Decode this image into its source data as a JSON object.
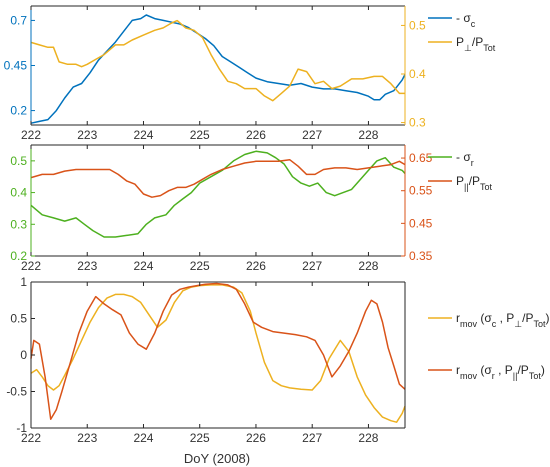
{
  "figure": {
    "xlabel": "DoY (2008)",
    "xticks": [
      "222",
      "223",
      "224",
      "225",
      "226",
      "227",
      "228"
    ]
  },
  "chart_data": [
    {
      "type": "line",
      "xlim": [
        222,
        228.65
      ],
      "grid": false,
      "legend_position": "outside-right",
      "left_axis": {
        "ylim": [
          0.12,
          0.78
        ],
        "ticks": [
          "0.2",
          "0.45",
          "0.7"
        ],
        "color": "#0072bd"
      },
      "right_axis": {
        "ylim": [
          0.295,
          0.54
        ],
        "ticks": [
          "0.3",
          "0.4",
          "0.5"
        ],
        "color": "#edb120"
      },
      "series": [
        {
          "name": "- σ_c",
          "legend_main": "- σ",
          "legend_sub": "c",
          "axis": "left",
          "color": "#0072bd",
          "x": [
            222.0,
            222.15,
            222.3,
            222.45,
            222.6,
            222.75,
            222.9,
            223.05,
            223.2,
            223.35,
            223.5,
            223.65,
            223.8,
            223.95,
            224.05,
            224.2,
            224.35,
            224.5,
            224.65,
            224.8,
            224.95,
            225.1,
            225.25,
            225.4,
            225.55,
            225.7,
            225.85,
            226.0,
            226.2,
            226.4,
            226.6,
            226.8,
            227.0,
            227.2,
            227.4,
            227.6,
            227.8,
            228.0,
            228.1,
            228.2,
            228.3,
            228.45,
            228.6,
            228.65
          ],
          "y": [
            0.13,
            0.14,
            0.15,
            0.2,
            0.27,
            0.33,
            0.35,
            0.41,
            0.48,
            0.53,
            0.58,
            0.64,
            0.7,
            0.71,
            0.73,
            0.71,
            0.7,
            0.69,
            0.68,
            0.66,
            0.63,
            0.6,
            0.56,
            0.5,
            0.47,
            0.44,
            0.41,
            0.38,
            0.36,
            0.35,
            0.34,
            0.35,
            0.33,
            0.32,
            0.32,
            0.31,
            0.3,
            0.28,
            0.26,
            0.26,
            0.29,
            0.31,
            0.37,
            0.4
          ]
        },
        {
          "name": "P⊥/P_Tot",
          "legend_main": "P",
          "legend_sub": "⊥",
          "legend_tail": "/P",
          "legend_tail_sub": "Tot",
          "axis": "right",
          "color": "#edb120",
          "x": [
            222.0,
            222.15,
            222.3,
            222.4,
            222.5,
            222.65,
            222.8,
            222.9,
            223.0,
            223.15,
            223.3,
            223.5,
            223.65,
            223.8,
            224.0,
            224.2,
            224.35,
            224.5,
            224.6,
            224.75,
            224.9,
            225.05,
            225.2,
            225.35,
            225.5,
            225.65,
            225.8,
            226.0,
            226.15,
            226.3,
            226.45,
            226.6,
            226.75,
            226.9,
            227.05,
            227.2,
            227.35,
            227.5,
            227.7,
            227.9,
            228.1,
            228.25,
            228.4,
            228.55,
            228.65
          ],
          "y": [
            0.465,
            0.46,
            0.455,
            0.455,
            0.425,
            0.42,
            0.42,
            0.415,
            0.42,
            0.43,
            0.44,
            0.46,
            0.46,
            0.47,
            0.48,
            0.49,
            0.495,
            0.505,
            0.51,
            0.495,
            0.49,
            0.475,
            0.44,
            0.41,
            0.385,
            0.38,
            0.37,
            0.37,
            0.355,
            0.345,
            0.36,
            0.375,
            0.41,
            0.405,
            0.38,
            0.385,
            0.37,
            0.375,
            0.39,
            0.39,
            0.395,
            0.395,
            0.38,
            0.36,
            0.36
          ]
        }
      ]
    },
    {
      "type": "line",
      "xlim": [
        222,
        228.65
      ],
      "grid": false,
      "legend_position": "outside-right",
      "left_axis": {
        "ylim": [
          0.2,
          0.55
        ],
        "ticks": [
          "0.2",
          "0.3",
          "0.4",
          "0.5"
        ],
        "color": "#4db01f"
      },
      "right_axis": {
        "ylim": [
          0.35,
          0.69
        ],
        "ticks": [
          "0.35",
          "0.45",
          "0.55",
          "0.65"
        ],
        "color": "#d95319"
      },
      "series": [
        {
          "name": "- σ_r",
          "legend_main": "- σ",
          "legend_sub": "r",
          "axis": "left",
          "color": "#4db01f",
          "x": [
            222.0,
            222.2,
            222.4,
            222.6,
            222.8,
            222.95,
            223.1,
            223.3,
            223.5,
            223.7,
            223.9,
            224.05,
            224.2,
            224.4,
            224.55,
            224.7,
            224.85,
            225.0,
            225.2,
            225.4,
            225.6,
            225.8,
            226.0,
            226.2,
            226.35,
            226.5,
            226.65,
            226.8,
            226.95,
            227.1,
            227.25,
            227.4,
            227.55,
            227.7,
            227.85,
            228.0,
            228.15,
            228.3,
            228.45,
            228.6,
            228.65
          ],
          "y": [
            0.36,
            0.33,
            0.32,
            0.31,
            0.32,
            0.3,
            0.28,
            0.26,
            0.26,
            0.265,
            0.27,
            0.3,
            0.32,
            0.33,
            0.36,
            0.38,
            0.4,
            0.43,
            0.45,
            0.47,
            0.5,
            0.52,
            0.53,
            0.525,
            0.51,
            0.49,
            0.45,
            0.43,
            0.42,
            0.43,
            0.4,
            0.39,
            0.4,
            0.41,
            0.44,
            0.47,
            0.5,
            0.51,
            0.48,
            0.47,
            0.46
          ]
        },
        {
          "name": "P||/P_Tot",
          "legend_main": "P",
          "legend_sub": "||",
          "legend_tail": "/P",
          "legend_tail_sub": "Tot",
          "axis": "right",
          "color": "#d95319",
          "x": [
            222.0,
            222.2,
            222.4,
            222.6,
            222.8,
            223.0,
            223.2,
            223.4,
            223.55,
            223.7,
            223.85,
            224.0,
            224.15,
            224.3,
            224.45,
            224.6,
            224.75,
            224.9,
            225.05,
            225.2,
            225.4,
            225.6,
            225.8,
            226.0,
            226.2,
            226.4,
            226.6,
            226.75,
            226.9,
            227.05,
            227.2,
            227.4,
            227.6,
            227.8,
            228.0,
            228.2,
            228.4,
            228.55,
            228.65
          ],
          "y": [
            0.59,
            0.6,
            0.6,
            0.61,
            0.615,
            0.615,
            0.615,
            0.615,
            0.6,
            0.58,
            0.57,
            0.54,
            0.53,
            0.535,
            0.55,
            0.56,
            0.56,
            0.57,
            0.585,
            0.6,
            0.615,
            0.625,
            0.635,
            0.64,
            0.64,
            0.64,
            0.645,
            0.625,
            0.6,
            0.6,
            0.615,
            0.62,
            0.62,
            0.615,
            0.62,
            0.625,
            0.63,
            0.64,
            0.63
          ]
        }
      ]
    },
    {
      "type": "line",
      "xlim": [
        222,
        228.65
      ],
      "ylim": [
        -1,
        1
      ],
      "yticks": [
        "-1",
        "-0.5",
        "0",
        "0.5",
        "1"
      ],
      "grid": false,
      "legend_position": "outside-right",
      "series": [
        {
          "name": "r_mov (σ_c , P⊥/P_Tot)",
          "legend_main": "r",
          "legend_sub": "mov",
          "legend_rest": " (σ",
          "legend_rest_sub": "c",
          "legend_rest2": " , P",
          "legend_rest2_sub": "⊥",
          "legend_tail": "/P",
          "legend_tail_sub": "Tot",
          "legend_end": ")",
          "color": "#edb120",
          "x": [
            222.0,
            222.1,
            222.2,
            222.3,
            222.4,
            222.5,
            222.6,
            222.75,
            222.9,
            223.05,
            223.2,
            223.35,
            223.5,
            223.65,
            223.8,
            223.95,
            224.1,
            224.25,
            224.4,
            224.55,
            224.7,
            224.85,
            225.0,
            225.2,
            225.4,
            225.6,
            225.75,
            225.9,
            226.0,
            226.15,
            226.3,
            226.45,
            226.6,
            226.8,
            227.0,
            227.15,
            227.3,
            227.5,
            227.65,
            227.8,
            227.95,
            228.1,
            228.25,
            228.4,
            228.5,
            228.6,
            228.65
          ],
          "y": [
            -0.25,
            -0.2,
            -0.3,
            -0.42,
            -0.48,
            -0.42,
            -0.28,
            -0.05,
            0.2,
            0.45,
            0.65,
            0.78,
            0.83,
            0.83,
            0.8,
            0.72,
            0.55,
            0.38,
            0.48,
            0.72,
            0.88,
            0.93,
            0.95,
            0.96,
            0.96,
            0.93,
            0.85,
            0.6,
            0.3,
            -0.1,
            -0.35,
            -0.42,
            -0.45,
            -0.47,
            -0.48,
            -0.35,
            -0.05,
            0.2,
            0.05,
            -0.3,
            -0.55,
            -0.72,
            -0.85,
            -0.9,
            -0.92,
            -0.8,
            -0.7
          ]
        },
        {
          "name": "r_mov (σ_r , P||/P_Tot)",
          "legend_main": "r",
          "legend_sub": "mov",
          "legend_rest": " (σ",
          "legend_rest_sub": "r",
          "legend_rest2": " , P",
          "legend_rest2_sub": "||",
          "legend_tail": "/P",
          "legend_tail_sub": "Tot",
          "legend_end": ")",
          "color": "#d95319",
          "x": [
            222.0,
            222.05,
            222.15,
            222.25,
            222.35,
            222.45,
            222.55,
            222.7,
            222.85,
            223.0,
            223.15,
            223.3,
            223.45,
            223.6,
            223.75,
            223.9,
            224.05,
            224.2,
            224.35,
            224.5,
            224.65,
            224.8,
            224.95,
            225.1,
            225.3,
            225.5,
            225.65,
            225.8,
            225.95,
            226.1,
            226.3,
            226.5,
            226.7,
            226.9,
            227.05,
            227.2,
            227.35,
            227.5,
            227.65,
            227.8,
            227.95,
            228.05,
            228.15,
            228.25,
            228.35,
            228.45,
            228.55,
            228.65
          ],
          "y": [
            -0.05,
            0.2,
            0.15,
            -0.3,
            -0.88,
            -0.75,
            -0.5,
            -0.1,
            0.3,
            0.6,
            0.8,
            0.7,
            0.62,
            0.55,
            0.3,
            0.15,
            0.08,
            0.3,
            0.6,
            0.82,
            0.9,
            0.93,
            0.95,
            0.97,
            0.98,
            0.96,
            0.9,
            0.7,
            0.45,
            0.38,
            0.32,
            0.3,
            0.28,
            0.25,
            0.2,
            0.0,
            -0.3,
            -0.15,
            0.05,
            0.3,
            0.6,
            0.75,
            0.7,
            0.45,
            0.1,
            -0.15,
            -0.4,
            -0.47
          ]
        }
      ]
    }
  ]
}
